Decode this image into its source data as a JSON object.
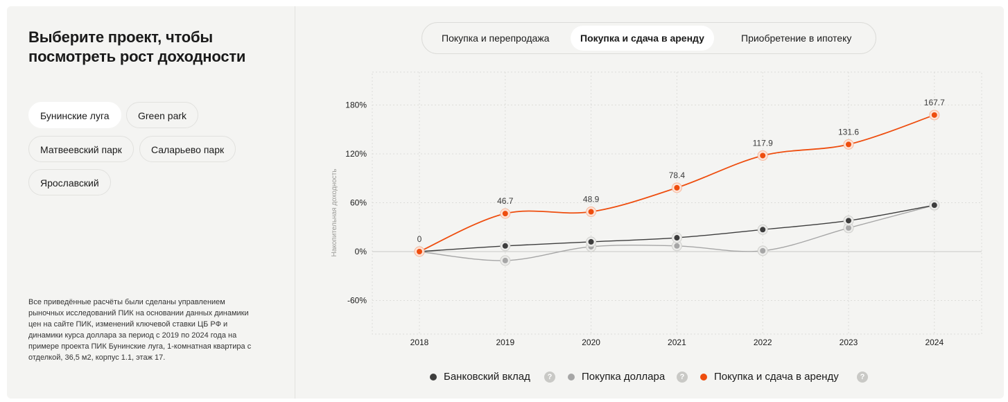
{
  "sidebar": {
    "title": "Выберите проект, чтобы посмотреть рост доходности",
    "projects": [
      {
        "label": "Бунинские луга",
        "active": true
      },
      {
        "label": "Green park",
        "active": false
      },
      {
        "label": "Матвеевский парк",
        "active": false
      },
      {
        "label": "Саларьево парк",
        "active": false
      },
      {
        "label": "Ярославский",
        "active": false
      }
    ],
    "note": "Все приведённые расчёты были сделаны управлением рыночных исследований ПИК на основании данных динамики цен на сайте ПИК, изменений ключевой ставки ЦБ РФ и динамики курса доллара за период с 2019 по 2024 года на примере проекта ПИК Бунинские луга, 1-комнатная квартира с отделкой, 36,5 м2, корпус 1.1, этаж 17."
  },
  "tabs": [
    {
      "label": "Покупка и перепродажа",
      "active": false
    },
    {
      "label": "Покупка и сдача в аренду",
      "active": true
    },
    {
      "label": "Приобретение в ипотеку",
      "active": false
    }
  ],
  "legend_help_icon": "question-icon",
  "chart_data": {
    "type": "line",
    "ylabel": "Накопительная доходность",
    "x": [
      "2018",
      "2019",
      "2020",
      "2021",
      "2022",
      "2023",
      "2024"
    ],
    "ylim": [
      -80,
      220
    ],
    "yticks": [
      180,
      120,
      60,
      0,
      -60
    ],
    "ytick_labels": [
      "180%",
      "120%",
      "60%",
      "0%",
      "-60%"
    ],
    "grid": true,
    "legend_position": "bottom",
    "series": [
      {
        "name": "Банковский вклад",
        "color": "#3d3d3d",
        "values": [
          0,
          7,
          12,
          17,
          27,
          38,
          57
        ]
      },
      {
        "name": "Покупка доллара",
        "color": "#a6a6a6",
        "values": [
          0,
          -11,
          6,
          7,
          1,
          29,
          57
        ]
      },
      {
        "name": "Покупка и сдача в аренду",
        "color": "#ee4d0e",
        "values": [
          0,
          46.7,
          48.9,
          78.4,
          117.9,
          131.6,
          167.7
        ],
        "data_labels": [
          "0",
          "46.7",
          "48.9",
          "78.4",
          "117.9",
          "131.6",
          "167.7"
        ]
      }
    ]
  }
}
